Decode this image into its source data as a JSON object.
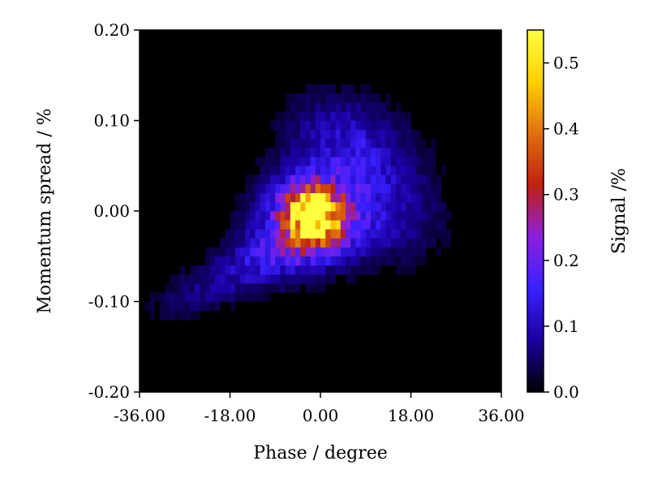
{
  "chart_data": {
    "type": "heatmap",
    "xlabel": "Phase / degree",
    "ylabel": "Momentum spread / %",
    "colorbar_label": "Signal /%",
    "xlim": [
      -36.0,
      36.0
    ],
    "ylim": [
      -0.2,
      0.2
    ],
    "x_ticks": [
      -36.0,
      -18.0,
      0.0,
      18.0,
      36.0
    ],
    "x_tick_labels": [
      "-36.00",
      "-18.00",
      "0.00",
      "18.00",
      "36.00"
    ],
    "y_ticks": [
      -0.2,
      -0.1,
      0.0,
      0.1,
      0.2
    ],
    "y_tick_labels": [
      "-0.20",
      "-0.10",
      "0.00",
      "0.10",
      "0.20"
    ],
    "color_range": [
      0.0,
      0.55
    ],
    "colorbar_ticks": [
      0.0,
      0.1,
      0.2,
      0.3,
      0.4,
      0.5
    ],
    "colorbar_tick_labels": [
      "0.0",
      "0.1",
      "0.2",
      "0.3",
      "0.4",
      "0.5"
    ],
    "colormap": "gnuplot2-like: black - blue - violet - red - orange - yellow",
    "colormap_stops": [
      "#000000",
      "#1a00a0",
      "#3a20ff",
      "#8a20e0",
      "#c02010",
      "#e07010",
      "#ffd000",
      "#ffff40"
    ],
    "background": "#000000",
    "bins": [
      72,
      40
    ],
    "features": [
      {
        "desc": "core peak",
        "x": -1.5,
        "y": -0.005,
        "sx": 3.5,
        "sy": 0.022,
        "amp": 0.45,
        "rot_deg": 30
      },
      {
        "desc": "red body",
        "x": -3.0,
        "y": -0.01,
        "sx": 8.0,
        "sy": 0.035,
        "amp": 0.16,
        "rot_deg": 35
      },
      {
        "desc": "diagonal tail lower-left",
        "x": -14.0,
        "y": -0.06,
        "sx": 14.0,
        "sy": 0.02,
        "amp": 0.09,
        "rot_deg": 25
      },
      {
        "desc": "upper plume",
        "x": 6.0,
        "y": 0.08,
        "sx": 6.0,
        "sy": 0.05,
        "amp": 0.1,
        "rot_deg": 70
      },
      {
        "desc": "right blue lobe",
        "x": 8.0,
        "y": 0.0,
        "sx": 7.0,
        "sy": 0.06,
        "amp": 0.1,
        "rot_deg": 80
      }
    ]
  }
}
